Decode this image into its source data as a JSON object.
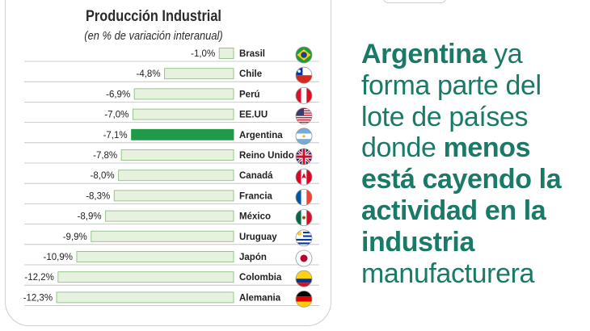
{
  "chart_data": {
    "type": "bar",
    "title": "Producción Industrial",
    "subtitle": "(en % de variación interanual)",
    "xlabel": "",
    "ylabel": "",
    "xlim": [
      -12.3,
      0
    ],
    "categories": [
      "Brasil",
      "Chile",
      "Perú",
      "EE.UU",
      "Argentina",
      "Reino Unido",
      "Canadá",
      "Francia",
      "México",
      "Uruguay",
      "Japón",
      "Colombia",
      "Alemania"
    ],
    "values": [
      -1.0,
      -4.8,
      -6.9,
      -7.0,
      -7.1,
      -7.8,
      -8.0,
      -8.3,
      -8.9,
      -9.9,
      -10.9,
      -12.2,
      -12.3
    ],
    "value_labels": [
      "-1,0%",
      "-4,8%",
      "-6,9%",
      "-7,0%",
      "-7,1%",
      "-7,8%",
      "-8,0%",
      "-8,3%",
      "-8,9%",
      "-9,9%",
      "-10,9%",
      "-12,2%",
      "-12,3%"
    ],
    "highlight": "Argentina",
    "flags": [
      "brazil-flag-icon",
      "chile-flag-icon",
      "peru-flag-icon",
      "usa-flag-icon",
      "argentina-flag-icon",
      "uk-flag-icon",
      "canada-flag-icon",
      "france-flag-icon",
      "mexico-flag-icon",
      "uruguay-flag-icon",
      "japan-flag-icon",
      "colombia-flag-icon",
      "germany-flag-icon"
    ]
  },
  "headline": {
    "segments": [
      {
        "text": "Argentina",
        "bold": true
      },
      {
        "text": " ya forma parte del lote de países donde ",
        "bold": false
      },
      {
        "text": "menos está cayendo la actividad en la industria",
        "bold": true
      },
      {
        "text": " manufacturera",
        "bold": false
      }
    ]
  },
  "colors": {
    "bar_fill": "#e6f2dd",
    "bar_stroke": "#8fbf86",
    "highlight_fill": "#1f9a47",
    "headline": "#1a7a67",
    "text": "#222222",
    "rule": "#bdbdbd"
  }
}
